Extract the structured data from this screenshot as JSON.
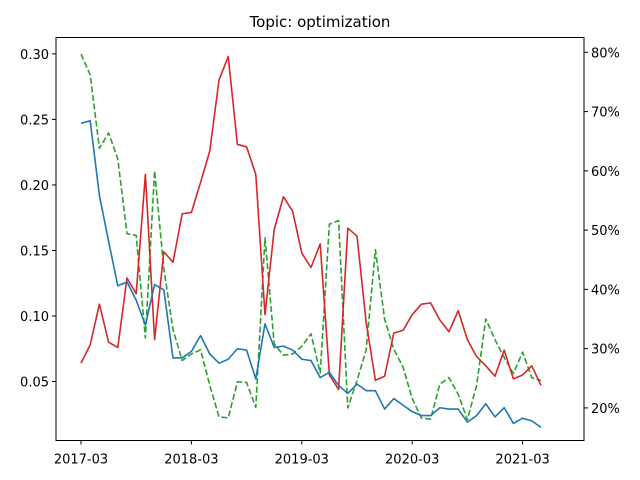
{
  "chart_data": {
    "type": "line",
    "title": "Topic: optimization",
    "x_tick_labels": [
      "2017-03",
      "2018-03",
      "2019-03",
      "2020-03",
      "2021-03"
    ],
    "x_tick_dates": [
      "2017-03",
      "2018-03",
      "2019-03",
      "2020-03",
      "2021-03"
    ],
    "x": [
      "2017-03",
      "2017-04",
      "2017-05",
      "2017-06",
      "2017-07",
      "2017-08",
      "2017-09",
      "2017-10",
      "2017-11",
      "2017-12",
      "2018-01",
      "2018-02",
      "2018-03",
      "2018-04",
      "2018-05",
      "2018-06",
      "2018-07",
      "2018-08",
      "2018-09",
      "2018-10",
      "2018-11",
      "2018-12",
      "2019-01",
      "2019-02",
      "2019-03",
      "2019-04",
      "2019-05",
      "2019-06",
      "2019-07",
      "2019-08",
      "2019-09",
      "2019-10",
      "2019-11",
      "2019-12",
      "2020-01",
      "2020-02",
      "2020-03",
      "2020-04",
      "2020-05",
      "2020-06",
      "2020-07",
      "2020-08",
      "2020-09",
      "2020-10",
      "2020-11",
      "2020-12",
      "2021-01",
      "2021-02",
      "2021-03",
      "2021-04",
      "2021-05"
    ],
    "left_axis": {
      "ylim": [
        0.005,
        0.3125
      ],
      "ticks": [
        "0.05",
        "0.10",
        "0.15",
        "0.20",
        "0.25",
        "0.30"
      ],
      "tick_values": [
        0.05,
        0.1,
        0.15,
        0.2,
        0.25,
        0.3
      ]
    },
    "right_axis": {
      "ylim": [
        0.145,
        0.825
      ],
      "ticks": [
        "20%",
        "30%",
        "40%",
        "50%",
        "60%",
        "70%",
        "80%"
      ],
      "tick_values": [
        0.2,
        0.3,
        0.4,
        0.5,
        0.6,
        0.7,
        0.8
      ]
    },
    "series": [
      {
        "axis": "left",
        "color": "#1f77b4",
        "style": "solid",
        "values": [
          0.247,
          0.249,
          0.192,
          0.157,
          0.123,
          0.126,
          0.112,
          0.093,
          0.124,
          0.12,
          0.068,
          0.068,
          0.073,
          0.085,
          0.071,
          0.064,
          0.067,
          0.075,
          0.074,
          0.052,
          0.094,
          0.076,
          0.077,
          0.074,
          0.067,
          0.066,
          0.053,
          0.057,
          0.047,
          0.041,
          0.048,
          0.043,
          0.043,
          0.029,
          0.037,
          0.032,
          0.027,
          0.024,
          0.024,
          0.03,
          0.029,
          0.029,
          0.019,
          0.024,
          0.033,
          0.023,
          0.03,
          0.018,
          0.022,
          0.02,
          0.015
        ]
      },
      {
        "axis": "left",
        "color": "#d62728",
        "style": "solid",
        "values": [
          0.064,
          0.078,
          0.109,
          0.08,
          0.076,
          0.129,
          0.117,
          0.208,
          0.082,
          0.149,
          0.141,
          0.178,
          0.179,
          0.202,
          0.226,
          0.28,
          0.298,
          0.231,
          0.229,
          0.208,
          0.101,
          0.166,
          0.191,
          0.18,
          0.148,
          0.137,
          0.155,
          0.055,
          0.044,
          0.167,
          0.161,
          0.095,
          0.051,
          0.054,
          0.087,
          0.089,
          0.101,
          0.109,
          0.11,
          0.097,
          0.088,
          0.104,
          0.082,
          0.069,
          0.062,
          0.054,
          0.074,
          0.052,
          0.055,
          0.062,
          0.047
        ]
      },
      {
        "axis": "right",
        "color": "#2ca02c",
        "style": "dashed",
        "values": [
          0.797,
          0.762,
          0.638,
          0.664,
          0.62,
          0.494,
          0.491,
          0.318,
          0.6,
          0.435,
          0.332,
          0.28,
          0.291,
          0.298,
          0.238,
          0.185,
          0.183,
          0.244,
          0.243,
          0.201,
          0.487,
          0.308,
          0.289,
          0.291,
          0.304,
          0.325,
          0.259,
          0.51,
          0.516,
          0.2,
          0.246,
          0.298,
          0.467,
          0.35,
          0.299,
          0.269,
          0.216,
          0.183,
          0.181,
          0.24,
          0.251,
          0.223,
          0.18,
          0.238,
          0.35,
          0.315,
          0.285,
          0.258,
          0.294,
          0.251,
          0.246
        ]
      }
    ]
  }
}
